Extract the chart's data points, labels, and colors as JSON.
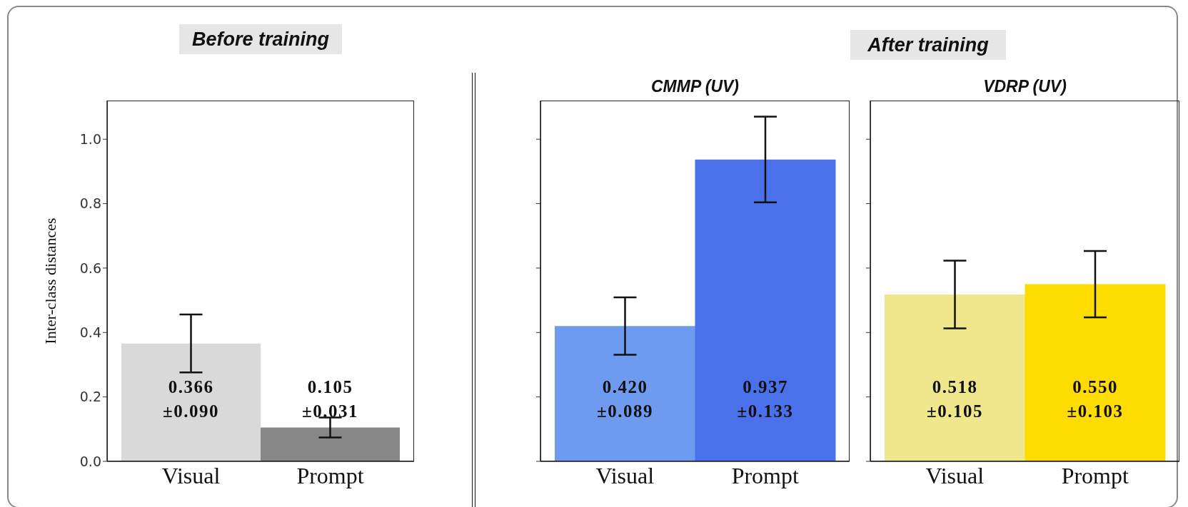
{
  "chart_data": [
    {
      "type": "bar",
      "title": "Before training",
      "ylabel": "Inter-class distances",
      "categories": [
        "Visual",
        "Prompt"
      ],
      "values": [
        0.366,
        0.105
      ],
      "errors": [
        0.09,
        0.031
      ],
      "colors": [
        "#d9d9d9",
        "#878787"
      ],
      "value_labels": [
        "0.366\n±0.090",
        "0.105\n±0.031"
      ],
      "ylim": [
        0,
        1.12
      ],
      "yticks": [
        {
          "value": 0,
          "label": "0.0"
        },
        0.2,
        0.4,
        0.6,
        0.8,
        {
          "value": 1,
          "label": "1.0"
        }
      ]
    },
    {
      "type": "bar",
      "title": "CMMP (UV)",
      "annotations": [
        "After training"
      ],
      "categories": [
        "Visual",
        "Prompt"
      ],
      "values": [
        0.42,
        0.937
      ],
      "errors": [
        0.089,
        0.133
      ],
      "colors": [
        "#6e9bf0",
        "#4a71e9"
      ],
      "value_labels": [
        "0.420\n±0.089",
        "0.937\n±0.133"
      ],
      "ylim": [
        0,
        1.12
      ],
      "yticks": [
        0,
        0.2,
        0.4,
        0.6,
        0.8,
        1
      ],
      "tick_labels": "x"
    },
    {
      "type": "bar",
      "title": "VDRP (UV)",
      "categories": [
        "Visual",
        "Prompt"
      ],
      "values": [
        0.518,
        0.55
      ],
      "errors": [
        0.105,
        0.103
      ],
      "colors": [
        "#f0e68c",
        "#ffdc00"
      ],
      "value_labels": [
        "0.518\n±0.105",
        "0.550\n±0.103"
      ],
      "ylim": [
        0,
        1.12
      ],
      "yticks": [
        0,
        0.2,
        0.4,
        0.6,
        0.8,
        1
      ],
      "tick_labels": "x"
    }
  ]
}
